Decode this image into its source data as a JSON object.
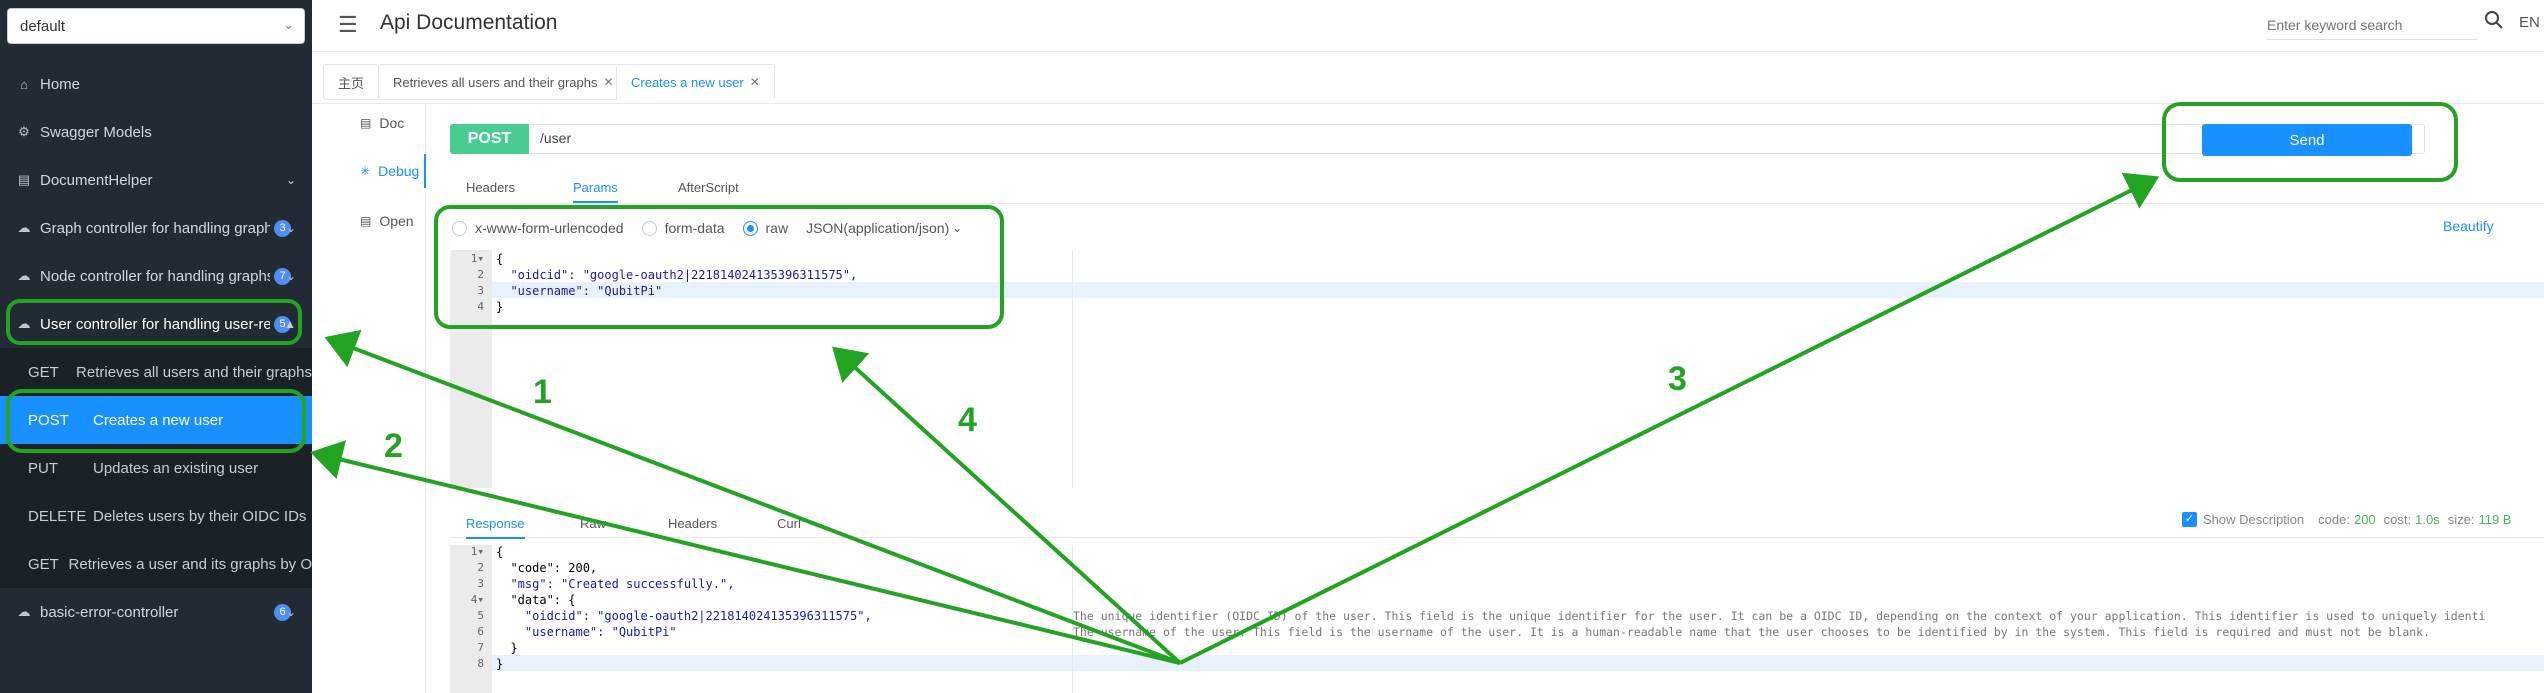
{
  "sidebar": {
    "group_select": "default",
    "items": [
      {
        "icon": "home-icon",
        "label": "Home"
      },
      {
        "icon": "gear-icon",
        "label": "Swagger Models"
      },
      {
        "icon": "document-icon",
        "label": "DocumentHelper"
      },
      {
        "icon": "cloud-icon",
        "label": "Graph controller for handling graphs",
        "badge": "3"
      },
      {
        "icon": "cloud-icon",
        "label": "Node controller for handling graphs",
        "badge": "7"
      },
      {
        "icon": "cloud-icon",
        "label": "User controller for handling user-re",
        "badge": "5"
      },
      {
        "icon": "cloud-icon",
        "label": "basic-error-controller",
        "badge": "6"
      }
    ],
    "endpoints": [
      {
        "method": "GET",
        "label": "Retrieves all users and their graphs"
      },
      {
        "method": "POST",
        "label": "Creates a new user"
      },
      {
        "method": "PUT",
        "label": "Updates an existing user"
      },
      {
        "method": "DELETE",
        "label": "Deletes users by their OIDC IDs"
      },
      {
        "method": "GET",
        "label": "Retrieves a user and its graphs by O"
      }
    ]
  },
  "header": {
    "title": "Api Documentation",
    "search_placeholder": "Enter keyword search",
    "lang": "EN"
  },
  "tabs": [
    {
      "label": "主页"
    },
    {
      "label": "Retrieves all users and their graphs"
    },
    {
      "label": "Creates a new user"
    }
  ],
  "doc_nav": [
    {
      "label": "Doc"
    },
    {
      "label": "Debug"
    },
    {
      "label": "Open"
    }
  ],
  "request": {
    "method": "POST",
    "url": "/user",
    "send_label": "Send",
    "tabs": [
      "Headers",
      "Params",
      "AfterScript"
    ],
    "body_options": [
      "x-www-form-urlencoded",
      "form-data",
      "raw"
    ],
    "content_type": "JSON(application/json)",
    "beautify": "Beautify",
    "body_lines": [
      "{",
      "  \"oidcid\": \"google-oauth2|221814024135396311575\",",
      "  \"username\": \"QubitPi\"",
      "}"
    ]
  },
  "response": {
    "tabs": [
      "Response",
      "Raw",
      "Headers",
      "Curl"
    ],
    "show_description": "Show Description",
    "code_label": "code:",
    "code": "200",
    "cost_label": "cost:",
    "cost": "1.0s",
    "size_label": "size:",
    "size": "119 B",
    "lines": [
      "{",
      "  \"code\": 200,",
      "  \"msg\": \"Created successfully.\",",
      "  \"data\": {",
      "    \"oidcid\": \"google-oauth2|221814024135396311575\",",
      "    \"username\": \"QubitPi\"",
      "  }",
      "}"
    ],
    "desc_oidcid": "The unique identifier (OIDC ID) of the user. This field is the unique identifier for the user. It can be a OIDC ID, depending on the context of your application. This identifier is used to uniquely identi",
    "desc_username": "The username of the user. This field is the username of the user.  It is a human-readable name that the user chooses to be identified by in the system.  This field is required and must not be blank."
  },
  "annotations": [
    "1",
    "2",
    "3",
    "4"
  ],
  "colors": {
    "annotation": "#22a322",
    "accent": "#1890ff",
    "post": "#49cc90"
  }
}
